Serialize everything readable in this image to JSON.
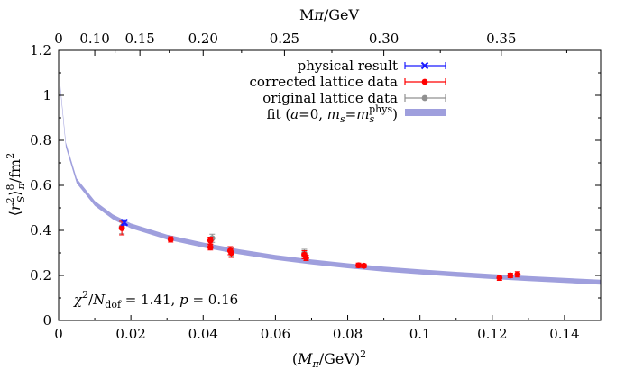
{
  "chart_data": {
    "type": "scatter",
    "x_axis": {
      "label": "(Mπ/GeV)²",
      "range": [
        0,
        0.15
      ],
      "ticks": [
        0,
        0.02,
        0.04,
        0.06,
        0.08,
        0.1,
        0.12,
        0.14
      ],
      "tick_labels": [
        "0",
        "0.02",
        "0.04",
        "0.06",
        "0.08",
        "0.1",
        "0.12",
        "0.14"
      ]
    },
    "top_axis": {
      "label": "Mπ/GeV",
      "ticks": [
        0,
        0.1,
        0.15,
        0.2,
        0.25,
        0.3,
        0.35
      ],
      "tick_labels": [
        "0",
        "0.10",
        "0.15",
        "0.20",
        "0.25",
        "0.30",
        "0.35"
      ]
    },
    "y_axis": {
      "label": "⟨r²_S⟩¸π/fm²",
      "range": [
        0,
        1.2
      ],
      "ticks": [
        0,
        0.2,
        0.4,
        0.6,
        0.8,
        1,
        1.2
      ],
      "tick_labels": [
        "0",
        "0.2",
        "0.4",
        "0.6",
        "0.8",
        "1",
        "1.2"
      ]
    },
    "grid": false,
    "legend_position": "top-right",
    "series": [
      {
        "name": "physical result",
        "marker": "cross",
        "color": "#1a1aff",
        "points": [
          {
            "x": 0.0182,
            "y": 0.435,
            "xerr": 0.0003,
            "yerr": 0.012
          }
        ]
      },
      {
        "name": "corrected lattice data",
        "marker": "circle",
        "color": "#ff0000",
        "points": [
          {
            "x": 0.0175,
            "y": 0.41,
            "yerr": 0.03
          },
          {
            "x": 0.031,
            "y": 0.36,
            "yerr": 0.012
          },
          {
            "x": 0.042,
            "y": 0.325,
            "yerr": 0.012
          },
          {
            "x": 0.042,
            "y": 0.355,
            "yerr": 0.015
          },
          {
            "x": 0.0475,
            "y": 0.31,
            "yerr": 0.018
          },
          {
            "x": 0.0478,
            "y": 0.3,
            "yerr": 0.02
          },
          {
            "x": 0.068,
            "y": 0.292,
            "yerr": 0.018
          },
          {
            "x": 0.0685,
            "y": 0.278,
            "yerr": 0.012
          },
          {
            "x": 0.083,
            "y": 0.245,
            "yerr": 0.01
          },
          {
            "x": 0.0845,
            "y": 0.243,
            "yerr": 0.008
          },
          {
            "x": 0.122,
            "y": 0.19,
            "yerr": 0.012
          },
          {
            "x": 0.125,
            "y": 0.2,
            "yerr": 0.01
          },
          {
            "x": 0.127,
            "y": 0.205,
            "yerr": 0.012
          }
        ]
      },
      {
        "name": "original lattice data",
        "marker": "circle",
        "color": "#909090",
        "points": [
          {
            "x": 0.0175,
            "y": 0.415,
            "yerr": 0.03
          },
          {
            "x": 0.0425,
            "y": 0.365,
            "yerr": 0.018
          },
          {
            "x": 0.0478,
            "y": 0.305,
            "yerr": 0.02
          },
          {
            "x": 0.068,
            "y": 0.298,
            "yerr": 0.018
          }
        ]
      },
      {
        "name": "fit (a=0, m_s=m_s^phys)",
        "type": "band",
        "color": "#9f9fdd",
        "x": [
          0.0005,
          0.002,
          0.005,
          0.01,
          0.015,
          0.02,
          0.03,
          0.04,
          0.05,
          0.06,
          0.07,
          0.08,
          0.09,
          0.1,
          0.11,
          0.12,
          0.13,
          0.14,
          0.15
        ],
        "y": [
          1.03,
          0.78,
          0.62,
          0.52,
          0.46,
          0.42,
          0.37,
          0.335,
          0.305,
          0.28,
          0.26,
          0.243,
          0.228,
          0.216,
          0.205,
          0.195,
          0.186,
          0.178,
          0.17
        ],
        "band_halfwidth": 0.011
      }
    ],
    "legend": [
      {
        "label": "physical result",
        "style": "cross-errorbar",
        "color": "#1a1aff"
      },
      {
        "label": "corrected lattice data",
        "style": "circle-errorbar",
        "color": "#ff0000"
      },
      {
        "label": "original lattice data",
        "style": "circle-errorbar",
        "color": "#909090"
      },
      {
        "label": "fit (a=0, m_s=m_s^phys)",
        "style": "band",
        "color": "#9f9fdd"
      }
    ],
    "annotation": "χ²/N_dof = 1.41, p = 0.16"
  }
}
